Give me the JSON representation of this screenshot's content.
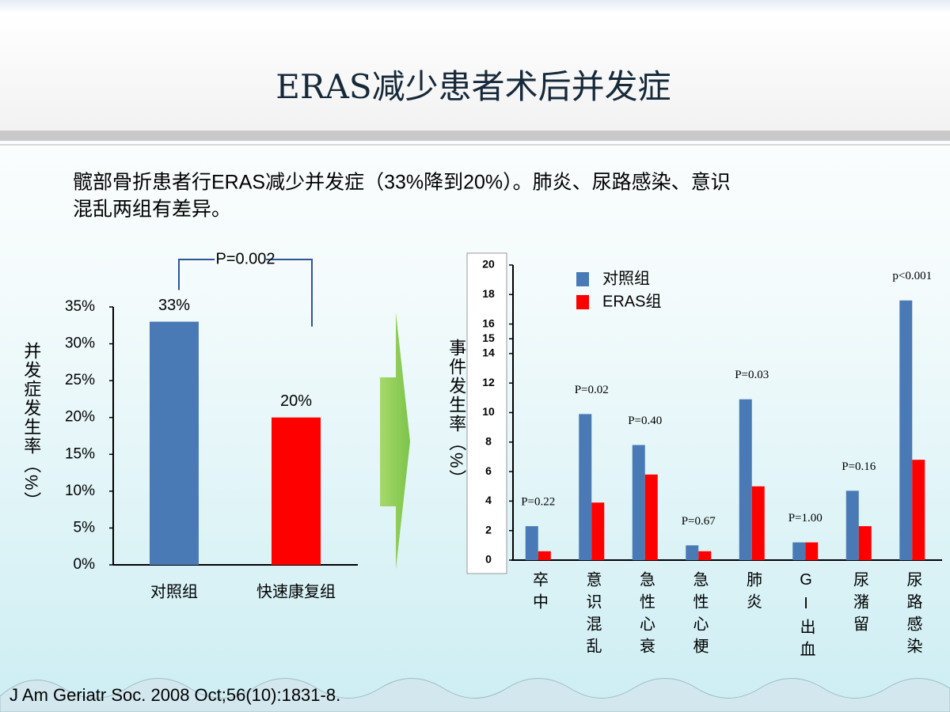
{
  "slide_title": "ERAS减少患者术后并发症",
  "body_lines": [
    "髋部骨折患者行ERAS减少并发症（33%降到20%）。肺炎、尿路感染、意识",
    "混乱两组有差异。"
  ],
  "citation": "J Am Geriatr Soc. 2008 Oct;56(10):1831-8.",
  "chart_data": [
    {
      "type": "bar",
      "y_label": "并发症发生率（%）",
      "categories": [
        "对照组",
        "快速康复组"
      ],
      "values": [
        33,
        20
      ],
      "value_labels": [
        "33%",
        "20%"
      ],
      "colors": [
        "#4a7ab5",
        "#ff0000"
      ],
      "annotation": "P=0.002",
      "ylim": [
        0,
        35
      ],
      "yticks": [
        {
          "value": 0,
          "label": "0%"
        },
        {
          "value": 5,
          "label": "5%"
        },
        {
          "value": 10,
          "label": "10%"
        },
        {
          "value": 15,
          "label": "15%"
        },
        {
          "value": 20,
          "label": "20%"
        },
        {
          "value": 25,
          "label": "25%"
        },
        {
          "value": 30,
          "label": "30%"
        },
        {
          "value": 35,
          "label": "35%"
        }
      ]
    },
    {
      "type": "grouped_bar",
      "y_label": "事件发生率（%）",
      "categories": [
        "卒中",
        "意识混乱",
        "急性心衰",
        "急性心梗",
        "肺炎",
        "GI出血",
        "尿潴留",
        "尿路感染"
      ],
      "series": [
        {
          "name": "对照组",
          "color": "#4a7ab5",
          "values": [
            2.3,
            9.9,
            7.8,
            1.0,
            10.9,
            1.2,
            4.7,
            17.6
          ]
        },
        {
          "name": "ERAS组",
          "color": "#ff0000",
          "values": [
            0.6,
            3.9,
            5.8,
            0.6,
            5.0,
            1.2,
            2.3,
            6.8
          ]
        }
      ],
      "annotations": [
        "P=0.22",
        "P=0.02",
        "P=0.40",
        "P=0.67",
        "P=0.03",
        "P=1.00",
        "P=0.16",
        "p<0.001"
      ],
      "legend": "top-left",
      "ylim": [
        0,
        20
      ],
      "yticks": [
        0,
        2,
        4,
        6,
        8,
        10,
        12,
        14,
        15,
        16,
        18,
        20
      ]
    }
  ]
}
